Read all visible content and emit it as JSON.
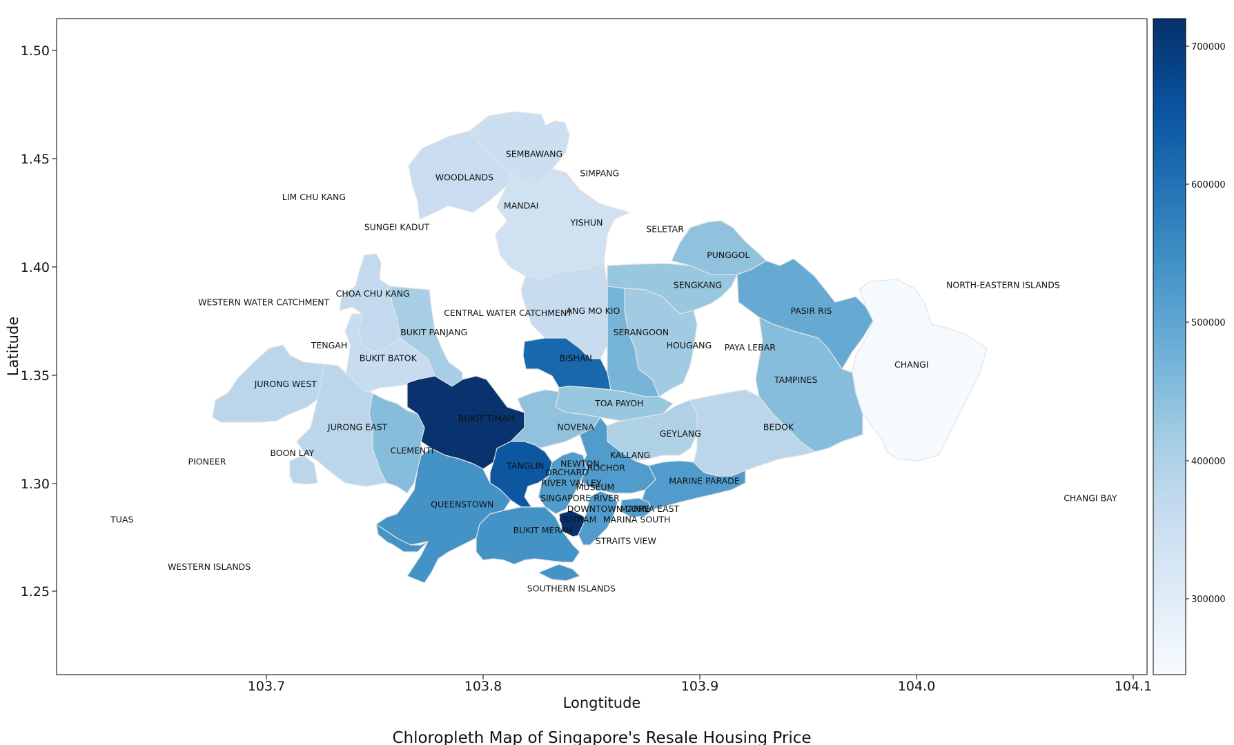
{
  "caption": "Chloropleth Map of Singapore's Resale Housing Price",
  "map_axes": {
    "xlabel": "Longtitude",
    "ylabel": "Latitude",
    "xlim": [
      103.6,
      104.1
    ],
    "ylim": [
      1.21,
      1.515
    ],
    "xticks": [
      103.7,
      103.8,
      103.9,
      104.0,
      104.1
    ],
    "xtick_labels": [
      "103.7",
      "103.8",
      "103.9",
      "104.0",
      "104.1"
    ],
    "yticks": [
      1.25,
      1.3,
      1.35,
      1.4,
      1.45,
      1.5
    ],
    "ytick_labels": [
      "1.25",
      "1.30",
      "1.35",
      "1.40",
      "1.45",
      "1.50"
    ]
  },
  "colorbar": {
    "colormap": "Blues",
    "min": 245000,
    "max": 720000,
    "ticks": [
      300000,
      400000,
      500000,
      600000,
      700000
    ],
    "tick_labels": [
      "300000",
      "400000",
      "500000",
      "600000",
      "700000"
    ],
    "color_low": "#f7fbff",
    "color_high": "#08306b"
  },
  "chart_data": {
    "type": "choropleth",
    "areas": [
      {
        "name": "SEMBAWANG",
        "lon": 103.819,
        "lat": 1.452,
        "value": 350000
      },
      {
        "name": "WOODLANDS",
        "lon": 103.787,
        "lat": 1.441,
        "value": 355000
      },
      {
        "name": "SIMPANG",
        "lon": 103.849,
        "lat": 1.443
      },
      {
        "name": "MANDAI",
        "lon": 103.813,
        "lat": 1.428
      },
      {
        "name": "LIM CHU KANG",
        "lon": 103.718,
        "lat": 1.432
      },
      {
        "name": "SUNGEI KADUT",
        "lon": 103.756,
        "lat": 1.418
      },
      {
        "name": "YISHUN",
        "lon": 103.843,
        "lat": 1.42,
        "value": 340000
      },
      {
        "name": "SELETAR",
        "lon": 103.879,
        "lat": 1.417
      },
      {
        "name": "PUNGGOL",
        "lon": 103.908,
        "lat": 1.405,
        "value": 440000
      },
      {
        "name": "SENGKANG",
        "lon": 103.894,
        "lat": 1.391,
        "value": 430000
      },
      {
        "name": "NORTH-EASTERN ISLANDS",
        "lon": 104.034,
        "lat": 1.391
      },
      {
        "name": "CHOA CHU KANG",
        "lon": 103.745,
        "lat": 1.387,
        "value": 370000
      },
      {
        "name": "WESTERN WATER CATCHMENT",
        "lon": 103.695,
        "lat": 1.383
      },
      {
        "name": "CENTRAL WATER CATCHMENT",
        "lon": 103.807,
        "lat": 1.378
      },
      {
        "name": "ANG MO KIO",
        "lon": 103.846,
        "lat": 1.379,
        "value": 360000
      },
      {
        "name": "PASIR RIS",
        "lon": 103.946,
        "lat": 1.379,
        "value": 490000
      },
      {
        "name": "BUKIT PANJANG",
        "lon": 103.773,
        "lat": 1.369,
        "value": 410000
      },
      {
        "name": "SERANGOON",
        "lon": 103.868,
        "lat": 1.369,
        "value": 470000
      },
      {
        "name": "TENGAH",
        "lon": 103.725,
        "lat": 1.363
      },
      {
        "name": "HOUGANG",
        "lon": 103.89,
        "lat": 1.363,
        "value": 420000
      },
      {
        "name": "PAYA LEBAR",
        "lon": 103.918,
        "lat": 1.362
      },
      {
        "name": "BUKIT BATOK",
        "lon": 103.752,
        "lat": 1.357,
        "value": 360000
      },
      {
        "name": "BISHAN",
        "lon": 103.838,
        "lat": 1.357,
        "value": 620000
      },
      {
        "name": "CHANGI",
        "lon": 103.992,
        "lat": 1.354,
        "value": 250000
      },
      {
        "name": "JURONG WEST",
        "lon": 103.705,
        "lat": 1.345,
        "value": 380000
      },
      {
        "name": "TAMPINES",
        "lon": 103.939,
        "lat": 1.347,
        "value": 450000
      },
      {
        "name": "TOA PAYOH",
        "lon": 103.858,
        "lat": 1.336,
        "value": 430000
      },
      {
        "name": "BUKIT TIMAH",
        "lon": 103.797,
        "lat": 1.329,
        "value": 715000
      },
      {
        "name": "NOVENA",
        "lon": 103.838,
        "lat": 1.325,
        "value": 440000
      },
      {
        "name": "JURONG EAST",
        "lon": 103.738,
        "lat": 1.325,
        "value": 380000
      },
      {
        "name": "BEDOK",
        "lon": 103.931,
        "lat": 1.325,
        "value": 380000
      },
      {
        "name": "GEYLANG",
        "lon": 103.886,
        "lat": 1.322,
        "value": 400000
      },
      {
        "name": "CLEMENTI",
        "lon": 103.763,
        "lat": 1.314,
        "value": 450000
      },
      {
        "name": "BOON LAY",
        "lon": 103.708,
        "lat": 1.313
      },
      {
        "name": "KALLANG",
        "lon": 103.863,
        "lat": 1.312,
        "value": 520000
      },
      {
        "name": "PIONEER",
        "lon": 103.669,
        "lat": 1.309
      },
      {
        "name": "NEWTON",
        "lon": 103.84,
        "lat": 1.308
      },
      {
        "name": "TANGLIN",
        "lon": 103.815,
        "lat": 1.307,
        "value": 650000
      },
      {
        "name": "ROCHOR",
        "lon": 103.852,
        "lat": 1.306
      },
      {
        "name": "ORCHARD",
        "lon": 103.834,
        "lat": 1.304
      },
      {
        "name": "MARINE PARADE",
        "lon": 103.897,
        "lat": 1.3,
        "value": 520000
      },
      {
        "name": "RIVER VALLEY",
        "lon": 103.836,
        "lat": 1.299
      },
      {
        "name": "MUSEUM",
        "lon": 103.847,
        "lat": 1.297
      },
      {
        "name": "SINGAPORE RIVER",
        "lon": 103.84,
        "lat": 1.292
      },
      {
        "name": "CHANGI BAY",
        "lon": 104.074,
        "lat": 1.292
      },
      {
        "name": "QUEENSTOWN",
        "lon": 103.786,
        "lat": 1.289,
        "value": 540000
      },
      {
        "name": "MARINA EAST",
        "lon": 103.872,
        "lat": 1.287
      },
      {
        "name": "DOWNTOWN CORE",
        "lon": 103.853,
        "lat": 1.287
      },
      {
        "name": "OUTRAM",
        "lon": 103.839,
        "lat": 1.282,
        "value": 720000
      },
      {
        "name": "TUAS",
        "lon": 103.63,
        "lat": 1.282
      },
      {
        "name": "MARINA SOUTH",
        "lon": 103.866,
        "lat": 1.282
      },
      {
        "name": "BUKIT MERAH",
        "lon": 103.823,
        "lat": 1.277,
        "value": 540000
      },
      {
        "name": "STRAITS VIEW",
        "lon": 103.861,
        "lat": 1.272
      },
      {
        "name": "WESTERN ISLANDS",
        "lon": 103.67,
        "lat": 1.26
      },
      {
        "name": "SOUTHERN ISLANDS",
        "lon": 103.836,
        "lat": 1.25
      }
    ]
  }
}
